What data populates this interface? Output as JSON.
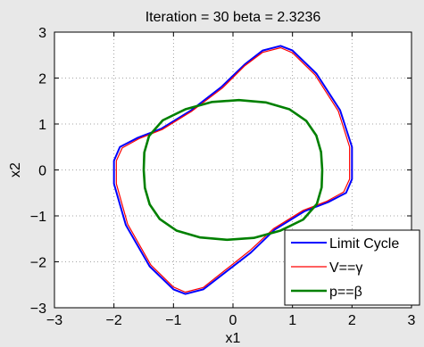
{
  "chart_data": {
    "type": "line",
    "title": "Iteration = 30 beta = 2.3236",
    "xlabel": "x1",
    "ylabel": "x2",
    "xlim": [
      -3,
      3
    ],
    "ylim": [
      -3,
      3
    ],
    "xticks": [
      -3,
      -2,
      -1,
      0,
      1,
      2,
      3
    ],
    "yticks": [
      -3,
      -2,
      -1,
      0,
      1,
      2,
      3
    ],
    "xtick_labels": [
      "−3",
      "−2",
      "−1",
      "0",
      "1",
      "2",
      "3"
    ],
    "ytick_labels": [
      "−3",
      "−2",
      "−1",
      "0",
      "1",
      "2",
      "3"
    ],
    "grid": true,
    "legend_position": "bottom-right",
    "series": [
      {
        "name": "Limit Cycle",
        "color": "#0000ff",
        "points": [
          [
            2.0,
            0.0
          ],
          [
            2.0,
            0.5
          ],
          [
            1.8,
            1.3
          ],
          [
            1.4,
            2.1
          ],
          [
            1.0,
            2.6
          ],
          [
            0.8,
            2.7
          ],
          [
            0.5,
            2.6
          ],
          [
            0.2,
            2.3
          ],
          [
            -0.2,
            1.8
          ],
          [
            -0.7,
            1.3
          ],
          [
            -1.2,
            0.9
          ],
          [
            -1.6,
            0.7
          ],
          [
            -1.9,
            0.5
          ],
          [
            -2.0,
            0.2
          ],
          [
            -2.0,
            -0.3
          ],
          [
            -1.8,
            -1.2
          ],
          [
            -1.4,
            -2.1
          ],
          [
            -1.0,
            -2.6
          ],
          [
            -0.8,
            -2.7
          ],
          [
            -0.5,
            -2.6
          ],
          [
            -0.1,
            -2.2
          ],
          [
            0.3,
            -1.8
          ],
          [
            0.7,
            -1.3
          ],
          [
            1.2,
            -0.9
          ],
          [
            1.6,
            -0.7
          ],
          [
            1.9,
            -0.5
          ],
          [
            2.0,
            -0.2
          ],
          [
            2.0,
            0.0
          ]
        ]
      },
      {
        "name": "V==γ",
        "color": "#ff0000",
        "points": [
          [
            1.96,
            0.0
          ],
          [
            1.96,
            0.5
          ],
          [
            1.77,
            1.28
          ],
          [
            1.38,
            2.07
          ],
          [
            1.0,
            2.55
          ],
          [
            0.8,
            2.66
          ],
          [
            0.5,
            2.56
          ],
          [
            0.2,
            2.27
          ],
          [
            -0.18,
            1.78
          ],
          [
            -0.69,
            1.28
          ],
          [
            -1.19,
            0.88
          ],
          [
            -1.58,
            0.68
          ],
          [
            -1.86,
            0.48
          ],
          [
            -1.96,
            0.2
          ],
          [
            -1.96,
            -0.3
          ],
          [
            -1.77,
            -1.18
          ],
          [
            -1.38,
            -2.07
          ],
          [
            -1.0,
            -2.55
          ],
          [
            -0.8,
            -2.66
          ],
          [
            -0.5,
            -2.56
          ],
          [
            -0.12,
            -2.17
          ],
          [
            0.28,
            -1.76
          ],
          [
            0.68,
            -1.28
          ],
          [
            1.18,
            -0.88
          ],
          [
            1.58,
            -0.68
          ],
          [
            1.86,
            -0.48
          ],
          [
            1.96,
            -0.2
          ],
          [
            1.96,
            0.0
          ]
        ]
      },
      {
        "name": "p==β",
        "color": "#008000",
        "points": [
          [
            1.5,
            0.0
          ],
          [
            1.48,
            0.39
          ],
          [
            1.4,
            0.75
          ],
          [
            1.23,
            1.07
          ],
          [
            0.95,
            1.32
          ],
          [
            0.55,
            1.47
          ],
          [
            0.1,
            1.52
          ],
          [
            -0.35,
            1.48
          ],
          [
            -0.8,
            1.32
          ],
          [
            -1.18,
            1.08
          ],
          [
            -1.41,
            0.74
          ],
          [
            -1.49,
            0.38
          ],
          [
            -1.5,
            0.0
          ],
          [
            -1.48,
            -0.39
          ],
          [
            -1.4,
            -0.75
          ],
          [
            -1.23,
            -1.07
          ],
          [
            -0.95,
            -1.32
          ],
          [
            -0.55,
            -1.47
          ],
          [
            -0.1,
            -1.52
          ],
          [
            0.35,
            -1.48
          ],
          [
            0.8,
            -1.32
          ],
          [
            1.18,
            -1.08
          ],
          [
            1.41,
            -0.74
          ],
          [
            1.49,
            -0.38
          ],
          [
            1.5,
            0.0
          ]
        ]
      }
    ]
  }
}
